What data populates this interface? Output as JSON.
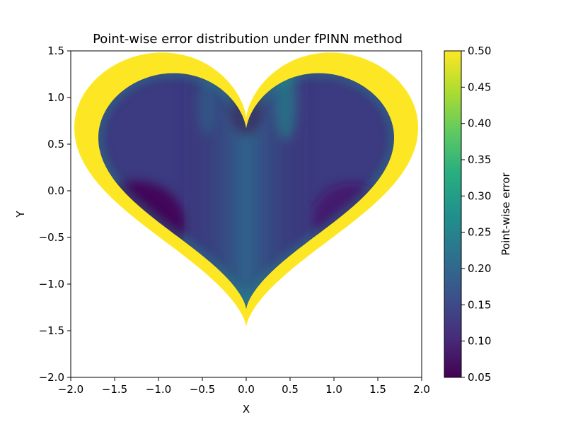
{
  "chart_data": {
    "type": "heatmap",
    "title": "Point-wise error distribution under fPINN method",
    "xlabel": "X",
    "ylabel": "Y",
    "xlim": [
      -2.0,
      2.0
    ],
    "ylim": [
      -2.0,
      1.5
    ],
    "x_ticks": [
      "−2.0",
      "−1.5",
      "−1.0",
      "−0.5",
      "0.0",
      "0.5",
      "1.0",
      "1.5",
      "2.0"
    ],
    "y_ticks": [
      "−2.0",
      "−1.5",
      "−1.0",
      "−0.5",
      "0.0",
      "0.5",
      "1.0",
      "1.5"
    ],
    "colorbar": {
      "label": "Point-wise error",
      "range": [
        0.05,
        0.5
      ],
      "ticks": [
        "0.05",
        "0.10",
        "0.15",
        "0.20",
        "0.25",
        "0.30",
        "0.35",
        "0.40",
        "0.45",
        "0.50"
      ],
      "colormap": "viridis"
    },
    "domain_shape": "heart",
    "grid": false,
    "error_pattern": {
      "boundary_band_error": 0.5,
      "interior_low_error": 0.06,
      "center_column_error": 0.2
    }
  },
  "colors": {
    "viridis_low": "#440154",
    "viridis_mid": "#21918c",
    "viridis_high": "#fde725"
  }
}
